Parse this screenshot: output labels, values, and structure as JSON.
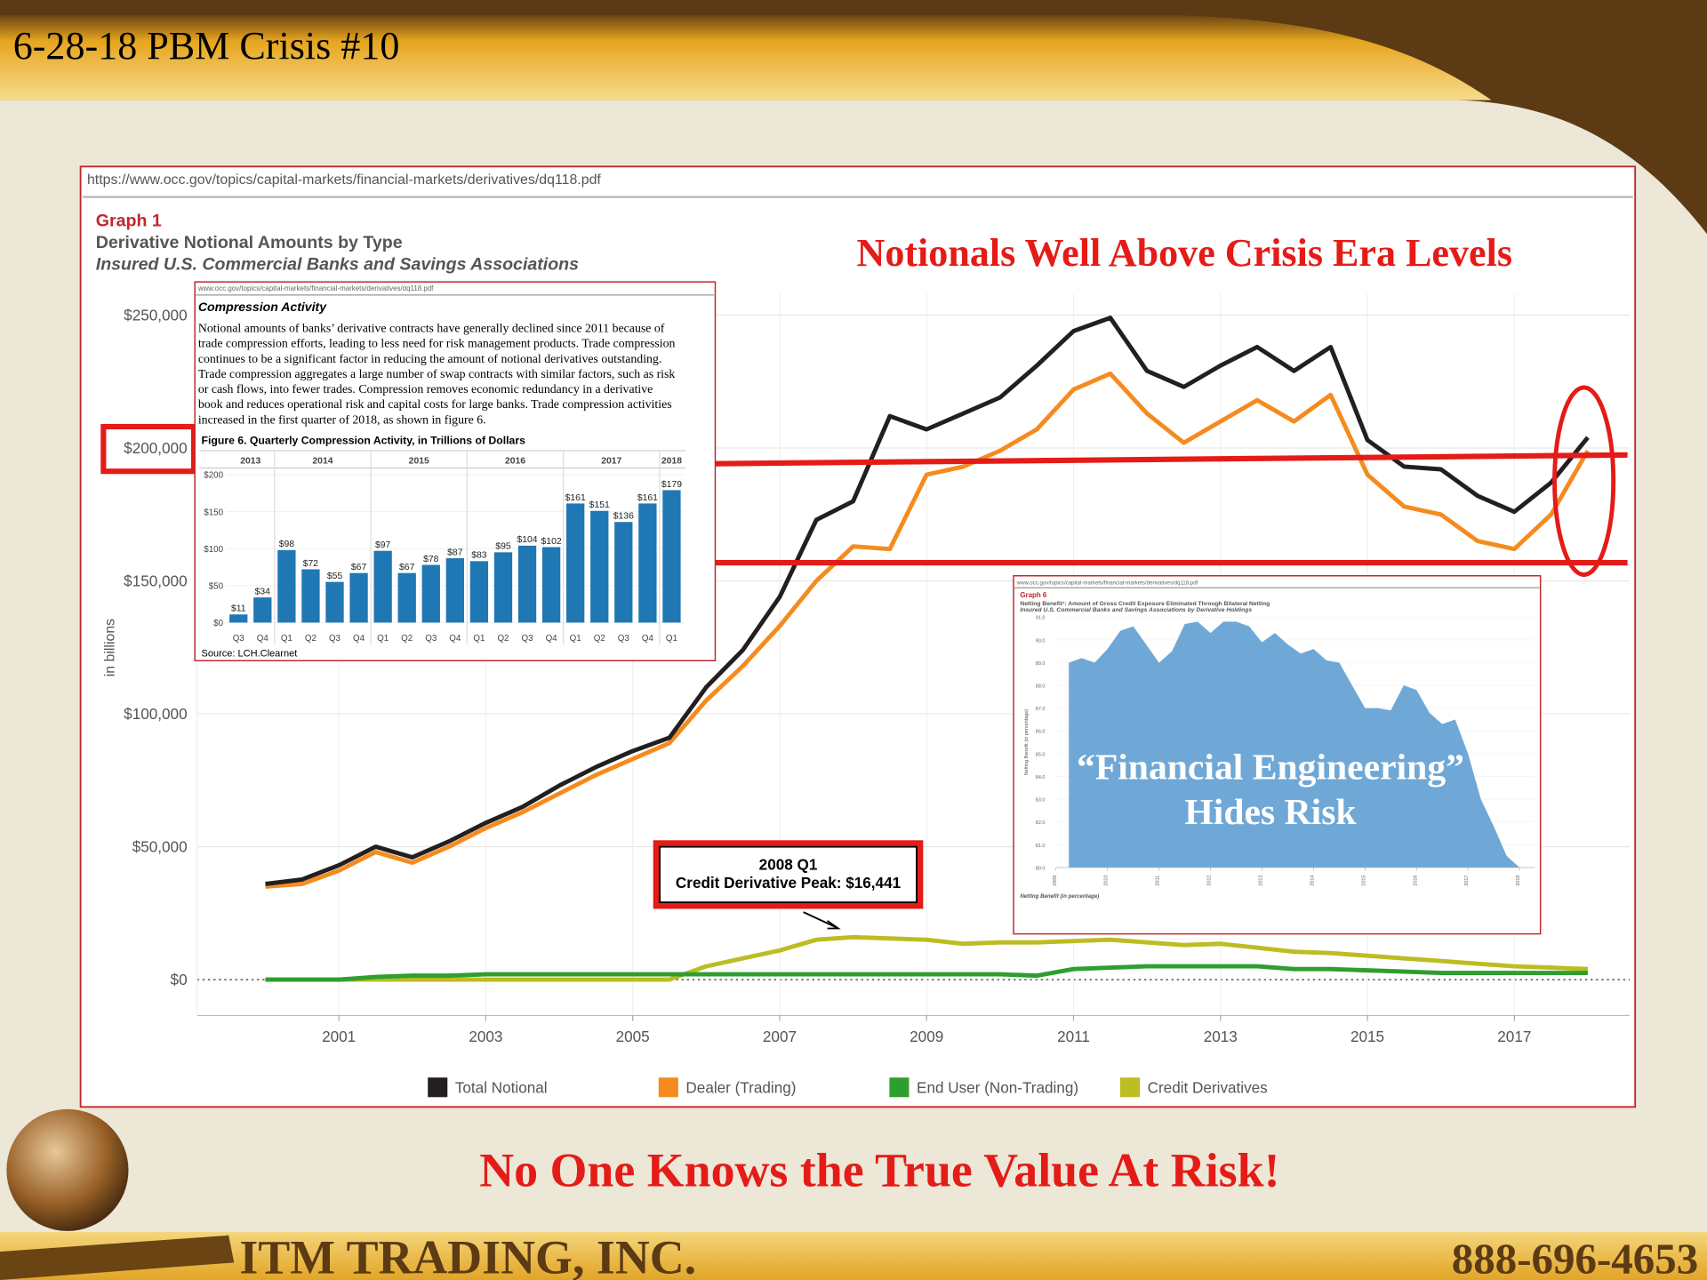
{
  "slide": {
    "title": "6-28-18 PBM Crisis #10",
    "url": "https://www.occ.gov/topics/capital-markets/financial-markets/derivatives/dq118.pdf",
    "headline": "Notionals Well Above Crisis Era Levels",
    "overlay": [
      "“Financial Engineering”",
      "Hides Risk"
    ],
    "footer_message": "No One Knows the True Value At Risk!",
    "company": "ITM TRADING, INC.",
    "phone": "888-696-4653"
  },
  "chart_data": [
    {
      "type": "line",
      "label": "Graph 1",
      "title": "Derivative Notional Amounts by Type",
      "subtitle": "Insured U.S. Commercial Banks and Savings Associations",
      "y_label": "in billions",
      "x": [
        2000,
        2000.5,
        2001,
        2001.5,
        2002,
        2002.5,
        2003,
        2003.5,
        2004,
        2004.5,
        2005,
        2005.5,
        2006,
        2006.5,
        2007,
        2007.5,
        2008,
        2008.5,
        2009,
        2009.5,
        2010,
        2010.5,
        2011,
        2011.5,
        2012,
        2012.5,
        2013,
        2013.5,
        2014,
        2014.5,
        2015,
        2015.5,
        2016,
        2016.5,
        2017,
        2017.5,
        2018
      ],
      "series": [
        {
          "name": "Total Notional",
          "color": "#231f20",
          "values": [
            36000,
            37700,
            43000,
            50000,
            46000,
            52000,
            59000,
            65000,
            73000,
            80000,
            86000,
            91000,
            110000,
            124000,
            144000,
            173000,
            180000,
            212000,
            207000,
            213000,
            219000,
            231000,
            244000,
            249000,
            229000,
            223000,
            231000,
            238000,
            229000,
            238000,
            203000,
            193000,
            192000,
            182000,
            176000,
            187000,
            204000
          ]
        },
        {
          "name": "Dealer (Trading)",
          "color": "#f58b1f",
          "values": [
            35000,
            36000,
            41000,
            48000,
            44000,
            50000,
            57000,
            63000,
            70000,
            77000,
            83000,
            89000,
            105000,
            118000,
            133000,
            150000,
            163000,
            162000,
            190000,
            193000,
            199000,
            207000,
            222000,
            228000,
            213000,
            202000,
            210000,
            218000,
            210000,
            220000,
            190000,
            178000,
            175000,
            165000,
            162000,
            175000,
            199000
          ]
        },
        {
          "name": "End User (Non-Trading)",
          "color": "#2e9e2e",
          "values": [
            0,
            0,
            0,
            1000,
            1500,
            1500,
            2000,
            2000,
            2000,
            2000,
            2000,
            2000,
            2000,
            2000,
            2000,
            2000,
            2000,
            2000,
            2000,
            2000,
            2000,
            1500,
            4000,
            4500,
            5000,
            5000,
            5000,
            5000,
            4000,
            4000,
            3500,
            3000,
            2500,
            2500,
            2500,
            2500,
            2500
          ]
        },
        {
          "name": "Credit Derivatives",
          "color": "#bcbd22",
          "values": [
            0,
            0,
            0,
            0,
            0,
            0,
            0,
            0,
            0,
            0,
            0,
            0,
            5000,
            8000,
            11000,
            15000,
            16000,
            15500,
            15000,
            13500,
            14000,
            14000,
            14500,
            15000,
            14000,
            13000,
            13500,
            12000,
            10500,
            10000,
            9000,
            8000,
            7000,
            6000,
            5000,
            4500,
            4000
          ]
        }
      ],
      "xlim": [
        1999.07,
        2018.57
      ],
      "xticks": [
        2001,
        2003,
        2005,
        2007,
        2009,
        2011,
        2013,
        2015,
        2017
      ],
      "ylim": [
        -13500,
        258000
      ],
      "yticks": [
        {
          "value": 0,
          "label": "$0"
        },
        {
          "value": 50000,
          "label": "$50,000"
        },
        {
          "value": 100000,
          "label": "$100,000"
        },
        {
          "value": 150000,
          "label": "$150,000"
        },
        {
          "value": 200000,
          "label": "$200,000"
        },
        {
          "value": 250000,
          "label": "$250,000"
        }
      ],
      "grid": true,
      "legend": "bottom",
      "annotation": [
        "2008 Q1",
        "Credit Derivative Peak: $16,441"
      ]
    },
    {
      "type": "bar",
      "url": "www.occ.gov/topics/capital-markets/financial-markets/derivatives/dq118.pdf",
      "heading": "Compression Activity",
      "text": [
        "Notional amounts of banks’ derivative contracts have generally declined since 2011 because of",
        "trade compression efforts, leading to less need for risk management products. Trade compression",
        "continues to be a significant factor in reducing the amount of notional derivatives outstanding.",
        "Trade compression aggregates a large number of swap contracts with similar factors, such as risk",
        "or cash flows, into fewer trades. Compression removes economic redundancy in a derivative",
        "book and reduces operational risk and capital costs for large banks. Trade compression activities",
        "increased in the first quarter of 2018, as shown in figure 6."
      ],
      "title": "Figure 6. Quarterly Compression Activity, in Trillions of Dollars",
      "year_groups": [
        "2013",
        "2014",
        "2015",
        "2016",
        "2017",
        "2018"
      ],
      "categories": [
        "Q3",
        "Q4",
        "Q1",
        "Q2",
        "Q3",
        "Q4",
        "Q1",
        "Q2",
        "Q3",
        "Q4",
        "Q1",
        "Q2",
        "Q3",
        "Q4",
        "Q1",
        "Q2",
        "Q3",
        "Q4",
        "Q1"
      ],
      "values": [
        11,
        34,
        98,
        72,
        55,
        67,
        97,
        67,
        78,
        87,
        83,
        95,
        104,
        102,
        161,
        151,
        136,
        161,
        179
      ],
      "value_labels": [
        "$11",
        "$34",
        "$98",
        "$72",
        "$55",
        "$67",
        "$97",
        "$67",
        "$78",
        "$87",
        "$83",
        "$95",
        "$104",
        "$102",
        "$161",
        "$151",
        "$136",
        "$161",
        "$179"
      ],
      "color": "#1f77b4",
      "ylim": [
        0,
        206
      ],
      "yticks": [
        {
          "value": 0,
          "label": "$0"
        },
        {
          "value": 50,
          "label": "$50"
        },
        {
          "value": 100,
          "label": "$100"
        },
        {
          "value": 150,
          "label": "$150"
        },
        {
          "value": 200,
          "label": "$200"
        }
      ],
      "source": "Source: LCH.Clearnet"
    },
    {
      "type": "area",
      "url": "www.occ.gov/topics/capital-markets/financial-markets/derivatives/dq118.pdf",
      "label": "Graph 6",
      "title": "Netting Benefit¹: Amount of Gross Credit Exposure Eliminated Through Bilateral Netting",
      "subtitle": "Insured U.S. Commercial Banks and Savings Associations by Derivative Holdings",
      "y_label": "Netting Benefit (in percentage)",
      "x": [
        2009.25,
        2009.5,
        2009.75,
        2010,
        2010.25,
        2010.5,
        2010.75,
        2011,
        2011.25,
        2011.5,
        2011.75,
        2012,
        2012.25,
        2012.5,
        2012.75,
        2013,
        2013.25,
        2013.5,
        2013.75,
        2014,
        2014.25,
        2014.5,
        2014.75,
        2015,
        2015.25,
        2015.5,
        2015.75,
        2016,
        2016.25,
        2016.5,
        2016.75,
        2017,
        2017.25,
        2017.5,
        2017.75,
        2018
      ],
      "values": [
        89.0,
        89.2,
        89.0,
        89.6,
        90.4,
        90.6,
        89.8,
        89.0,
        89.5,
        90.7,
        90.8,
        90.3,
        90.8,
        90.8,
        90.6,
        89.9,
        90.3,
        89.8,
        89.4,
        89.6,
        89.1,
        89.0,
        88.0,
        87.0,
        87.0,
        86.9,
        88.0,
        87.8,
        86.8,
        86.3,
        86.5,
        85.0,
        83.0,
        81.8,
        80.5,
        80.0
      ],
      "color": "#6fa8d6",
      "xlim": [
        2009,
        2018.3
      ],
      "xticks": [
        2009,
        2010,
        2011,
        2012,
        2013,
        2014,
        2015,
        2016,
        2017,
        2018
      ],
      "ylim": [
        80,
        91
      ],
      "yticks": [
        {
          "value": 80,
          "label": "80.0"
        },
        {
          "value": 81,
          "label": "81.0"
        },
        {
          "value": 82,
          "label": "82.0"
        },
        {
          "value": 83,
          "label": "83.0"
        },
        {
          "value": 84,
          "label": "84.0"
        },
        {
          "value": 85,
          "label": "85.0"
        },
        {
          "value": 86,
          "label": "86.0"
        },
        {
          "value": 87,
          "label": "87.0"
        },
        {
          "value": 88,
          "label": "88.0"
        },
        {
          "value": 89,
          "label": "89.0"
        },
        {
          "value": 90,
          "label": "90.0"
        },
        {
          "value": 91,
          "label": "91.0"
        }
      ]
    }
  ]
}
